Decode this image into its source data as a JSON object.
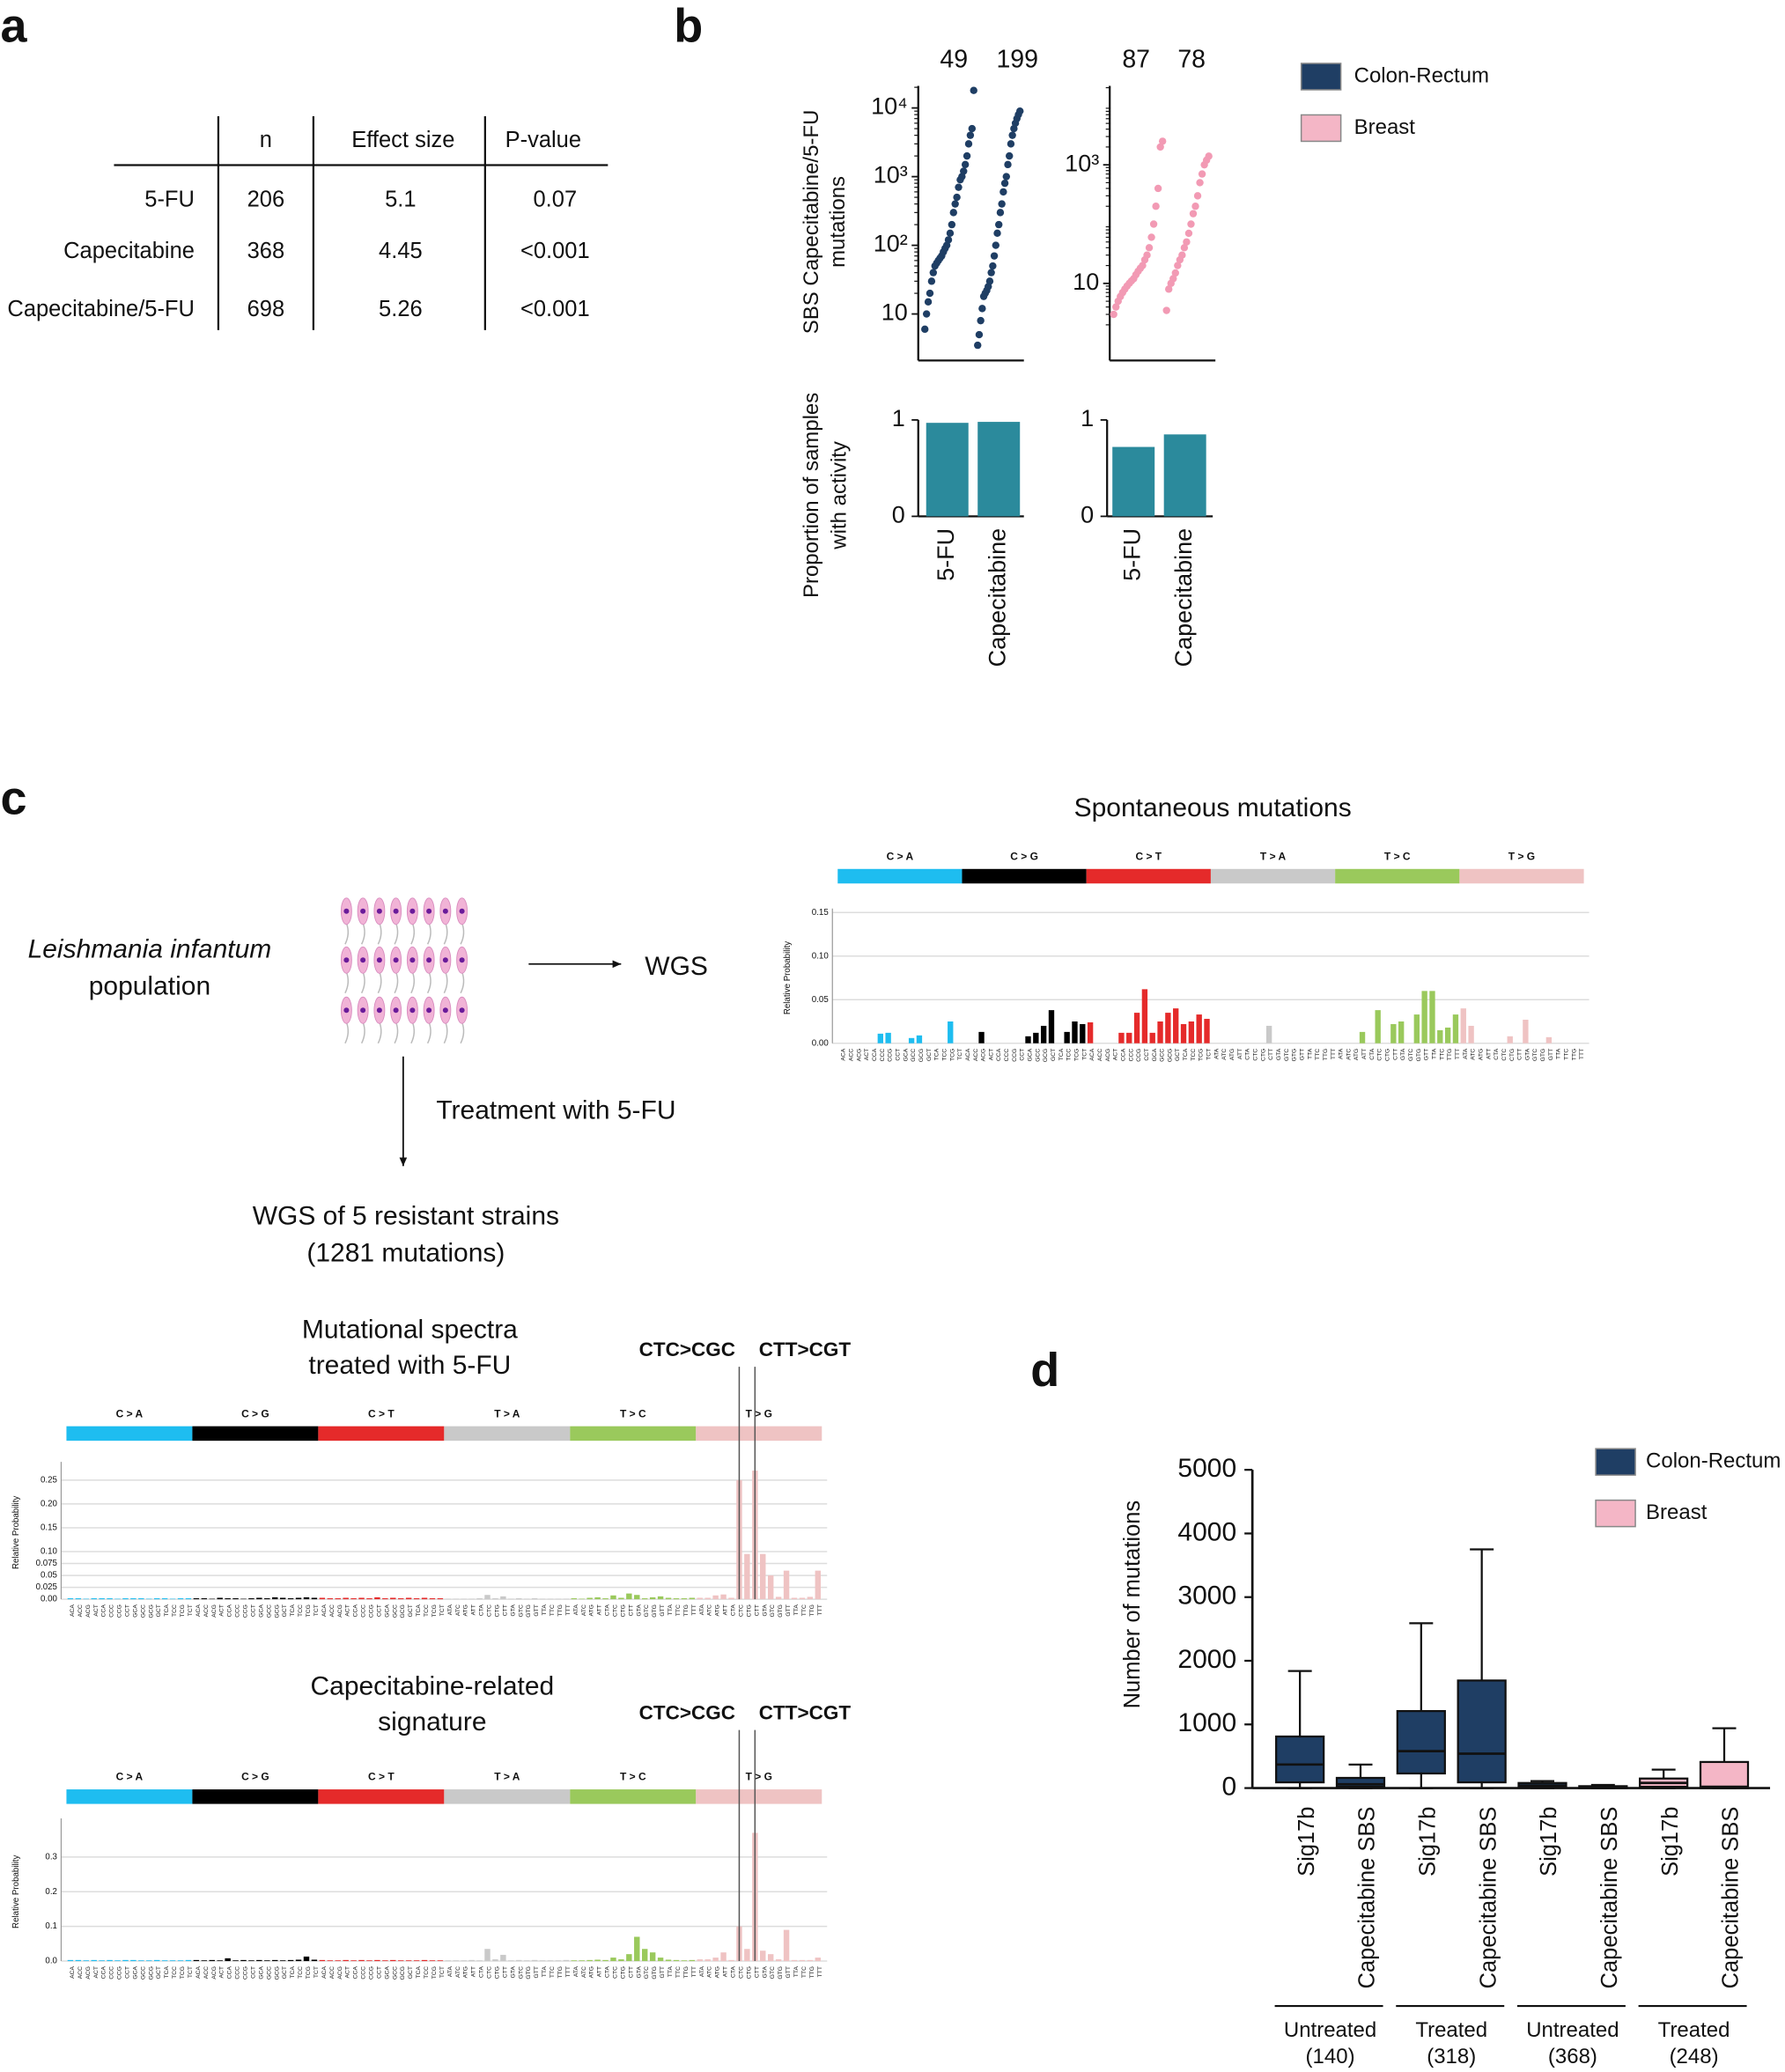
{
  "panel_labels": [
    "a",
    "b",
    "c",
    "d"
  ],
  "table": {
    "header": [
      "n",
      "Effect size",
      "P-value"
    ],
    "rows": [
      [
        "5-FU",
        "206",
        "5.1",
        "0.07"
      ],
      [
        "Capecitabine",
        "368",
        "4.45",
        "<0.001"
      ],
      [
        "Capecitabine/5-FU",
        "698",
        "5.26",
        "<0.001"
      ]
    ]
  },
  "legend": [
    {
      "name": "Colon-Rectum",
      "color": "#1f3e64"
    },
    {
      "name": "Breast",
      "color": "#f4b6c6"
    }
  ],
  "diagram": {
    "organism": "Leishmania infantum",
    "population": "population",
    "wgs": "WGS",
    "treatment": "Treatment with 5-FU",
    "strains": [
      "WGS of 5 resistant strains",
      "(1281 mutations)"
    ]
  },
  "mutation_types": [
    {
      "label": "C > A",
      "color": "#1ebdf0"
    },
    {
      "label": "C > G",
      "color": "#000000"
    },
    {
      "label": "C > T",
      "color": "#e52a2a"
    },
    {
      "label": "T > A",
      "color": "#c9c9c9"
    },
    {
      "label": "T > C",
      "color": "#9ac95c"
    },
    {
      "label": "T > G",
      "color": "#efc3c3"
    }
  ],
  "contexts": [
    "ACA",
    "ACC",
    "ACG",
    "ACT",
    "CCA",
    "CCC",
    "CCG",
    "CCT",
    "GCA",
    "GCC",
    "GCG",
    "GCT",
    "TCA",
    "TCC",
    "TCG",
    "TCT",
    "ACA",
    "ACC",
    "ACG",
    "ACT",
    "CCA",
    "CCC",
    "CCG",
    "CCT",
    "GCA",
    "GCC",
    "GCG",
    "GCT",
    "TCA",
    "TCC",
    "TCG",
    "TCT",
    "ACA",
    "ACC",
    "ACG",
    "ACT",
    "CCA",
    "CCC",
    "CCG",
    "CCT",
    "GCA",
    "GCC",
    "GCG",
    "GCT",
    "TCA",
    "TCC",
    "TCG",
    "TCT",
    "ATA",
    "ATC",
    "ATG",
    "ATT",
    "CTA",
    "CTC",
    "CTG",
    "CTT",
    "GTA",
    "GTC",
    "GTG",
    "GTT",
    "TTA",
    "TTC",
    "TTG",
    "TTT",
    "ATA",
    "ATC",
    "ATG",
    "ATT",
    "CTA",
    "CTC",
    "CTG",
    "CTT",
    "GTA",
    "GTC",
    "GTG",
    "GTT",
    "TTA",
    "TTC",
    "TTG",
    "TTT",
    "ATA",
    "ATC",
    "ATG",
    "ATT",
    "CTA",
    "CTC",
    "CTG",
    "CTT",
    "GTA",
    "GTC",
    "GTG",
    "GTT",
    "TTA",
    "TTC",
    "TTG",
    "TTT"
  ],
  "chart_data": [
    {
      "type": "rank_dots",
      "ylabel": [
        "SBS Capecitabine/5-FU",
        "mutations"
      ],
      "color": "#1f3e64",
      "log_scale": true,
      "ylim": [
        2.1,
        21000
      ],
      "yticks": [
        {
          "value": 10,
          "label": "10"
        },
        {
          "value": 100,
          "label": "10²"
        },
        {
          "value": 1000,
          "label": "10³"
        },
        {
          "value": 10000,
          "label": "10⁴"
        }
      ],
      "groups": [
        {
          "n": 49,
          "values": [
            6,
            10,
            15,
            20,
            30,
            40,
            50,
            55,
            60,
            65,
            70,
            80,
            90,
            100,
            120,
            150,
            200,
            300,
            400,
            500,
            700,
            900,
            1000,
            1200,
            1500,
            2000,
            3000,
            4000,
            5000,
            18000
          ]
        },
        {
          "n": 199,
          "values": [
            3.5,
            5,
            8,
            12,
            18,
            20,
            22,
            25,
            30,
            40,
            50,
            70,
            100,
            150,
            200,
            300,
            400,
            600,
            800,
            1000,
            1500,
            2000,
            3000,
            4000,
            5000,
            6000,
            7000,
            8000,
            9000
          ]
        }
      ]
    },
    {
      "type": "rank_dots",
      "color": "#f29ab4",
      "log_scale": true,
      "ylim": [
        0.5,
        21500
      ],
      "yticks": [
        {
          "value": 10,
          "label": "10"
        },
        {
          "value": 1000,
          "label": "10³"
        }
      ],
      "groups": [
        {
          "n": 87,
          "values": [
            3,
            4,
            5,
            6,
            7,
            8,
            9,
            10,
            11,
            12,
            14,
            16,
            18,
            20,
            25,
            30,
            40,
            60,
            100,
            200,
            400,
            2000,
            2500
          ]
        },
        {
          "n": 78,
          "values": [
            3.5,
            8,
            10,
            12,
            15,
            20,
            25,
            30,
            40,
            50,
            70,
            100,
            150,
            200,
            300,
            500,
            700,
            1000,
            1200,
            1400
          ]
        }
      ]
    },
    {
      "type": "bar",
      "ylabel": [
        "Proportion of samples",
        "with activity"
      ],
      "categories": [
        "5-FU",
        "Capecitabine"
      ],
      "values": [
        0.97,
        0.98
      ],
      "color": "#2b8a9c",
      "ylim": [
        0,
        1
      ],
      "yticks": [
        0,
        1
      ]
    },
    {
      "type": "bar",
      "categories": [
        "5-FU",
        "Capecitabine"
      ],
      "values": [
        0.72,
        0.85
      ],
      "color": "#2b8a9c",
      "ylim": [
        0,
        1
      ],
      "yticks": [
        0,
        1
      ]
    },
    {
      "type": "spectrum",
      "title": [
        "Spontaneous mutations"
      ],
      "ylabel": "Relative Probability",
      "grid": true,
      "ylim": [
        0,
        0.15
      ],
      "yticks": [
        {
          "value": 0,
          "label": "0.00"
        },
        {
          "value": 0.05,
          "label": "0.05"
        },
        {
          "value": 0.1,
          "label": "0.10"
        },
        {
          "value": 0.15,
          "label": "0.15"
        }
      ],
      "values": [
        0,
        0,
        0,
        0,
        0,
        0.011,
        0.012,
        0,
        0,
        0.006,
        0.009,
        0,
        0,
        0,
        0.025,
        0,
        0,
        0,
        0.013,
        0,
        0,
        0,
        0,
        0,
        0.008,
        0.012,
        0.02,
        0.038,
        0,
        0.013,
        0.025,
        0.022,
        0.024,
        0,
        0,
        0,
        0.012,
        0.012,
        0.035,
        0.062,
        0.012,
        0.025,
        0.035,
        0.04,
        0.022,
        0.025,
        0.033,
        0.028,
        0,
        0,
        0,
        0,
        0,
        0,
        0,
        0.02,
        0,
        0,
        0,
        0,
        0,
        0,
        0,
        0,
        0,
        0,
        0,
        0.013,
        0,
        0.038,
        0,
        0.022,
        0.025,
        0,
        0.033,
        0.06,
        0.06,
        0.015,
        0.018,
        0.033,
        0.04,
        0.02,
        0,
        0,
        0,
        0,
        0.008,
        0,
        0.027,
        0,
        0,
        0.007,
        0,
        0,
        0,
        0
      ]
    },
    {
      "type": "spectrum",
      "title": [
        "Mutational spectra",
        "treated with 5-FU"
      ],
      "ylabel": "Relative Probability",
      "grid": true,
      "ylim": [
        0,
        0.28
      ],
      "yticks": [
        {
          "value": 0,
          "label": "0.00"
        },
        {
          "value": 0.025,
          "label": "0.025"
        },
        {
          "value": 0.05,
          "label": "0.05"
        },
        {
          "value": 0.075,
          "label": "0.075"
        },
        {
          "value": 0.1,
          "label": "0.10"
        },
        {
          "value": 0.15,
          "label": "0.15"
        },
        {
          "value": 0.2,
          "label": "0.20"
        },
        {
          "value": 0.25,
          "label": "0.25"
        }
      ],
      "annotations": [
        "CTC>CGC",
        "CTT>CGT"
      ],
      "values": [
        0.002,
        0.002,
        0.001,
        0.002,
        0.002,
        0.002,
        0.001,
        0.002,
        0.002,
        0.002,
        0.001,
        0.002,
        0.002,
        0.001,
        0.002,
        0.002,
        0.002,
        0.002,
        0.001,
        0.003,
        0.002,
        0.002,
        0.001,
        0.002,
        0.003,
        0.002,
        0.004,
        0.003,
        0.002,
        0.003,
        0.004,
        0.003,
        0.003,
        0.002,
        0.002,
        0.003,
        0.002,
        0.003,
        0.002,
        0.004,
        0.002,
        0.003,
        0.002,
        0.003,
        0.002,
        0.003,
        0.002,
        0.002,
        0.001,
        0.001,
        0.001,
        0.001,
        0.002,
        0.009,
        0.002,
        0.006,
        0.001,
        0.002,
        0.001,
        0.002,
        0.001,
        0.001,
        0.001,
        0.001,
        0.002,
        0.001,
        0.003,
        0.004,
        0.002,
        0.008,
        0.003,
        0.012,
        0.009,
        0.002,
        0.004,
        0.006,
        0.003,
        0.002,
        0.002,
        0.003,
        0.003,
        0.003,
        0.008,
        0.01,
        0.003,
        0.25,
        0.095,
        0.27,
        0.095,
        0.05,
        0.005,
        0.06,
        0.003,
        0.003,
        0.005,
        0.06
      ]
    },
    {
      "type": "spectrum",
      "title": [
        "Capecitabine-related",
        "signature"
      ],
      "ylabel": "Relative Probability",
      "grid": true,
      "ylim": [
        0,
        0.4
      ],
      "yticks": [
        {
          "value": 0,
          "label": "0.0"
        },
        {
          "value": 0.1,
          "label": "0.1"
        },
        {
          "value": 0.2,
          "label": "0.2"
        },
        {
          "value": 0.3,
          "label": "0.3"
        }
      ],
      "annotations": [
        "CTC>CGC",
        "CTT>CGT"
      ],
      "values": [
        0.003,
        0.003,
        0.002,
        0.003,
        0.002,
        0.003,
        0.002,
        0.003,
        0.003,
        0.002,
        0.002,
        0.003,
        0.002,
        0.002,
        0.002,
        0.003,
        0.003,
        0.002,
        0.003,
        0.002,
        0.008,
        0.002,
        0.003,
        0.002,
        0.003,
        0.002,
        0.003,
        0.002,
        0.003,
        0.004,
        0.013,
        0.004,
        0.003,
        0.002,
        0.002,
        0.003,
        0.002,
        0.003,
        0.002,
        0.003,
        0.002,
        0.003,
        0.002,
        0.002,
        0.002,
        0.003,
        0.002,
        0.002,
        0.002,
        0.002,
        0.002,
        0.003,
        0.002,
        0.035,
        0.005,
        0.018,
        0.002,
        0.003,
        0.002,
        0.003,
        0.002,
        0.002,
        0.002,
        0.003,
        0.002,
        0.002,
        0.003,
        0.004,
        0.003,
        0.01,
        0.005,
        0.02,
        0.07,
        0.035,
        0.025,
        0.01,
        0.004,
        0.003,
        0.002,
        0.003,
        0.005,
        0.005,
        0.01,
        0.025,
        0.003,
        0.1,
        0.035,
        0.37,
        0.03,
        0.02,
        0.005,
        0.09,
        0.003,
        0.003,
        0.003,
        0.01
      ]
    },
    {
      "type": "box",
      "ylabel": "Number of mutations",
      "ylim": [
        0,
        5000
      ],
      "yticks": [
        0,
        1000,
        2000,
        3000,
        4000,
        5000
      ],
      "categories": [
        "Sig17b",
        "Capecitabine SBS",
        "Sig17b",
        "Capecitabine SBS",
        "Sig17b",
        "Capecitabine SBS",
        "Sig17b",
        "Capecitabine SBS"
      ],
      "groups": [
        [
          "Untreated",
          "(140)"
        ],
        [
          "Treated",
          "(318)"
        ],
        [
          "Untreated",
          "(368)"
        ],
        [
          "Treated",
          "(248)"
        ]
      ],
      "series": [
        {
          "name": "Colon-Rectum",
          "color": "#1f3e64",
          "values": [
            {
              "min": 0,
              "q1": 90,
              "median": 370,
              "q3": 810,
              "max": 1840
            },
            {
              "min": 0,
              "q1": 20,
              "median": 60,
              "q3": 160,
              "max": 370
            },
            {
              "min": 0,
              "q1": 230,
              "median": 580,
              "q3": 1210,
              "max": 2590
            },
            {
              "min": 0,
              "q1": 90,
              "median": 540,
              "q3": 1690,
              "max": 3750
            },
            {
              "min": 0,
              "q1": 10,
              "median": 40,
              "q3": 80,
              "max": 110
            },
            {
              "min": 0,
              "q1": 0,
              "median": 10,
              "q3": 30,
              "max": 50
            },
            null,
            null
          ]
        },
        {
          "name": "Breast",
          "color": "#f4b6c6",
          "values": [
            null,
            null,
            null,
            null,
            null,
            null,
            {
              "min": 0,
              "q1": 20,
              "median": 80,
              "q3": 150,
              "max": 290
            },
            {
              "min": 0,
              "q1": 0,
              "median": 20,
              "q3": 410,
              "max": 940
            }
          ]
        }
      ]
    }
  ]
}
